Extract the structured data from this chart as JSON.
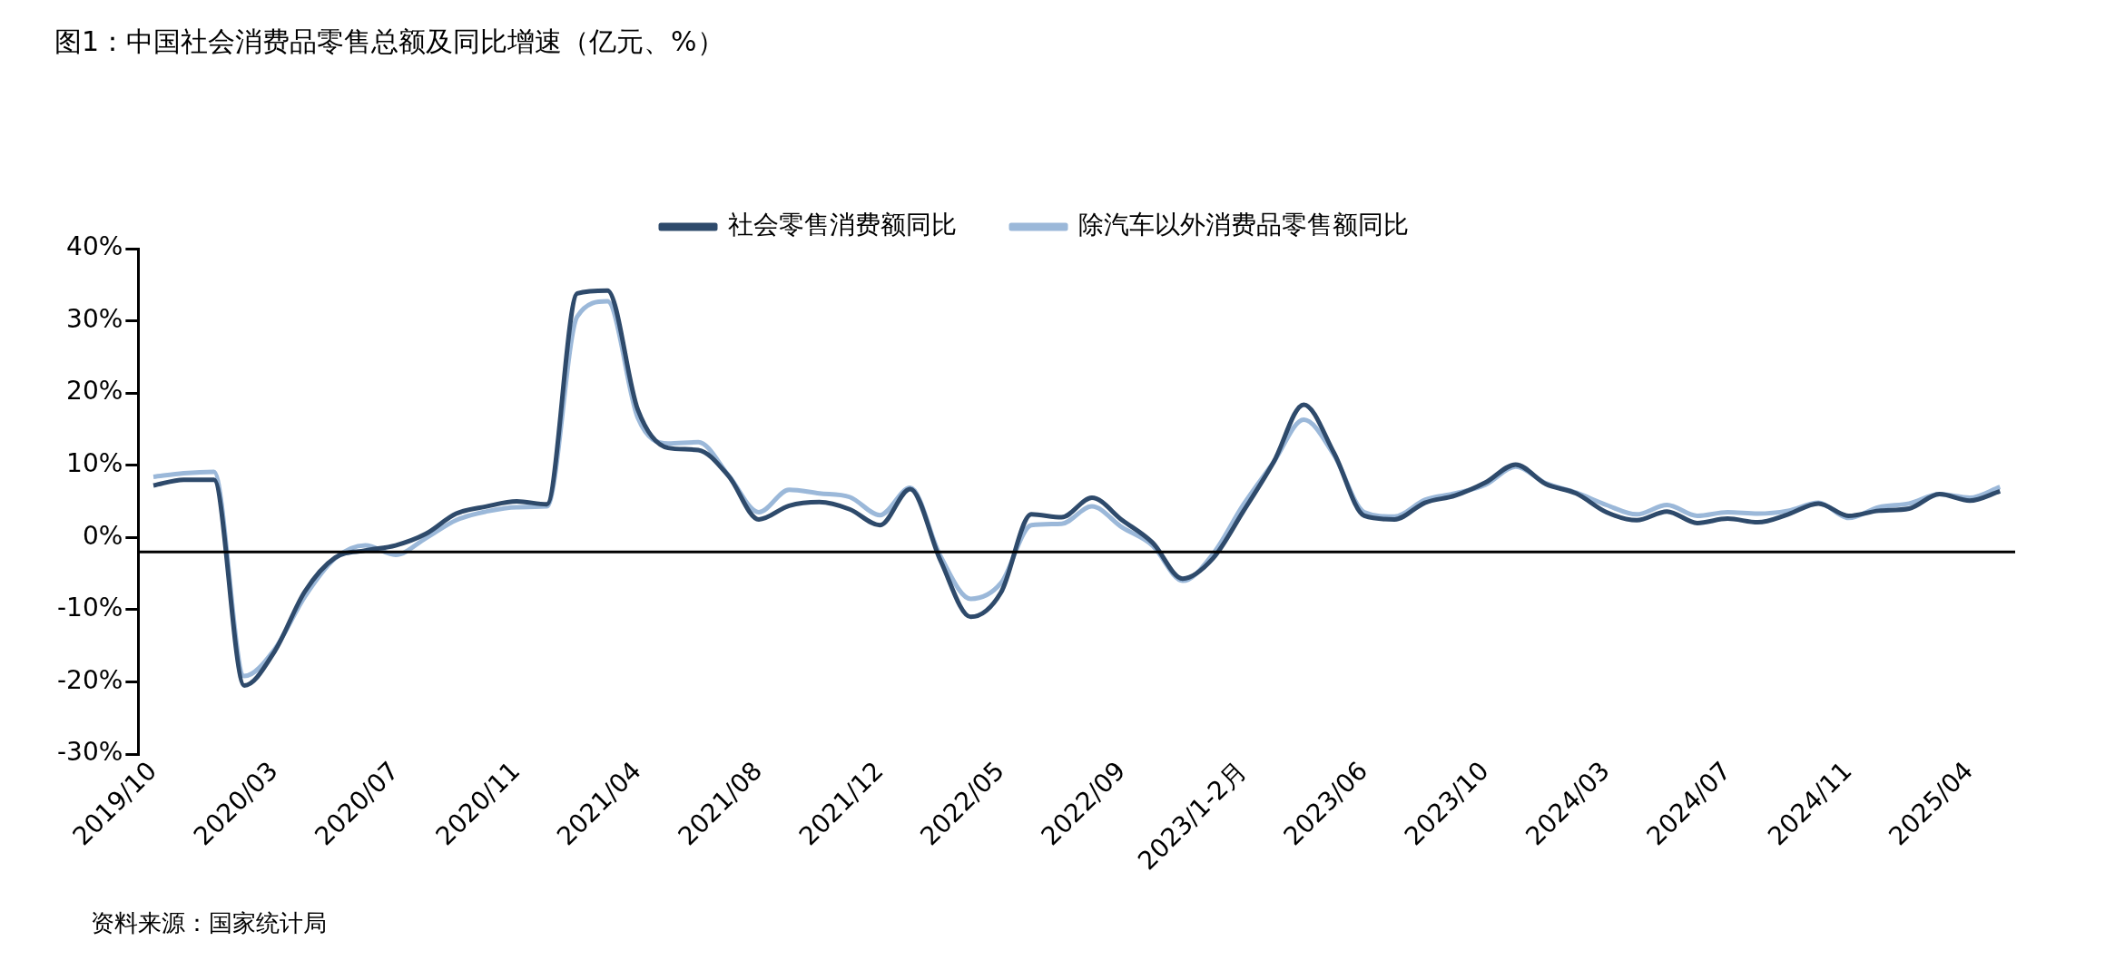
{
  "chart_data": {
    "type": "line",
    "title": "图1：中国社会消费品零售总额及同比增速（亿元、%）",
    "categories": [
      "2019/10",
      null,
      null,
      null,
      "2020/03",
      null,
      null,
      null,
      "2020/07",
      null,
      null,
      null,
      "2020/11",
      null,
      null,
      null,
      "2021/04",
      null,
      null,
      null,
      "2021/08",
      null,
      null,
      null,
      "2021/12",
      null,
      null,
      null,
      "2022/05",
      null,
      null,
      null,
      "2022/09",
      null,
      null,
      null,
      "2023/1-2月",
      null,
      null,
      null,
      "2023/06",
      null,
      null,
      null,
      "2023/10",
      null,
      null,
      null,
      "2024/03",
      null,
      null,
      null,
      "2024/07",
      null,
      null,
      null,
      "2024/11",
      null,
      null,
      null,
      "2025/04",
      null
    ],
    "series": [
      {
        "name": "社会零售消费额同比",
        "color": "#2e4a6b",
        "values": [
          7.2,
          8.0,
          8.0,
          -20.5,
          -15.8,
          -7.5,
          -2.8,
          -1.8,
          -1.1,
          0.5,
          3.3,
          4.3,
          5.0,
          4.6,
          33.8,
          34.2,
          17.7,
          12.4,
          12.1,
          8.5,
          2.5,
          4.4,
          4.9,
          3.9,
          1.7,
          6.7,
          -3.2,
          -11.0,
          -7.6,
          3.2,
          2.8,
          5.5,
          2.4,
          -0.7,
          -5.7,
          -2.9,
          3.6,
          10.4,
          18.4,
          11.7,
          3.0,
          2.5,
          4.8,
          5.8,
          7.6,
          10.1,
          7.4,
          6.1,
          3.5,
          2.4,
          3.6,
          2.0,
          2.6,
          2.1,
          3.2,
          4.7,
          3.0,
          3.7,
          4.0,
          6.0,
          5.1,
          6.4
        ]
      },
      {
        "name": "除汽车以外消费品零售额同比",
        "color": "#9bb8d9",
        "values": [
          8.4,
          8.9,
          9.1,
          -19.2,
          -15.5,
          -8.2,
          -2.9,
          -1.1,
          -2.4,
          -0.1,
          2.4,
          3.6,
          4.2,
          4.3,
          30.6,
          32.7,
          16.6,
          13.0,
          13.2,
          8.6,
          3.5,
          6.6,
          6.1,
          5.6,
          3.1,
          6.9,
          -2.6,
          -8.5,
          -6.3,
          1.7,
          1.9,
          4.3,
          1.4,
          -1.1,
          -6.0,
          -2.3,
          4.5,
          10.4,
          16.3,
          11.4,
          3.5,
          2.9,
          5.2,
          6.1,
          7.3,
          9.8,
          7.5,
          6.2,
          4.5,
          3.2,
          4.5,
          3.0,
          3.5,
          3.3,
          3.7,
          4.8,
          2.7,
          4.2,
          4.7,
          6.0,
          5.5,
          7.0
        ]
      }
    ],
    "ylim": [
      -30,
      40
    ],
    "yticks": [
      {
        "value": -30,
        "label": "-30%"
      },
      {
        "value": -20,
        "label": "-20%"
      },
      {
        "value": -10,
        "label": "-10%"
      },
      {
        "value": 0,
        "label": "0%"
      },
      {
        "value": 10,
        "label": "10%"
      },
      {
        "value": 20,
        "label": "20%"
      },
      {
        "value": 30,
        "label": "30%"
      },
      {
        "value": 40,
        "label": "40%"
      }
    ],
    "ref_lines": [
      {
        "axis": "y",
        "value": -2,
        "color": "#000000"
      }
    ],
    "grid": false,
    "legend": "top",
    "marker": "none",
    "line_style": "solid",
    "annotations": [
      "资料来源：国家统计局"
    ]
  }
}
